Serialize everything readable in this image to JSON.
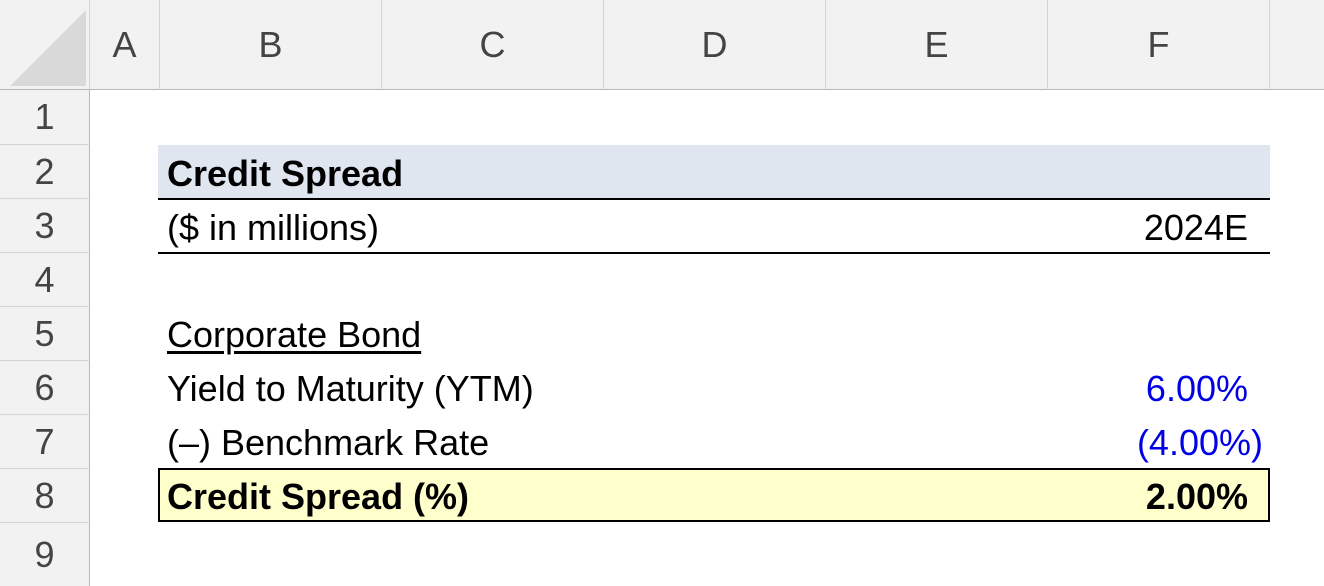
{
  "columns": [
    "A",
    "B",
    "C",
    "D",
    "E",
    "F"
  ],
  "rows": [
    "1",
    "2",
    "3",
    "4",
    "5",
    "6",
    "7",
    "8",
    "9"
  ],
  "table": {
    "title": "Credit Spread",
    "units_label": "($ in millions)",
    "period": "2024E",
    "section_label": "Corporate Bond",
    "ytm_label": "Yield to Maturity (YTM)",
    "ytm_value": "6.00%",
    "benchmark_label": "(–) Benchmark Rate",
    "benchmark_value": "(4.00%)",
    "spread_label": "Credit Spread (%)",
    "spread_value": "2.00%"
  },
  "colors": {
    "title_fill": "#dfe6f0",
    "total_fill": "#ffffcc",
    "input_font": "#0000e6"
  }
}
